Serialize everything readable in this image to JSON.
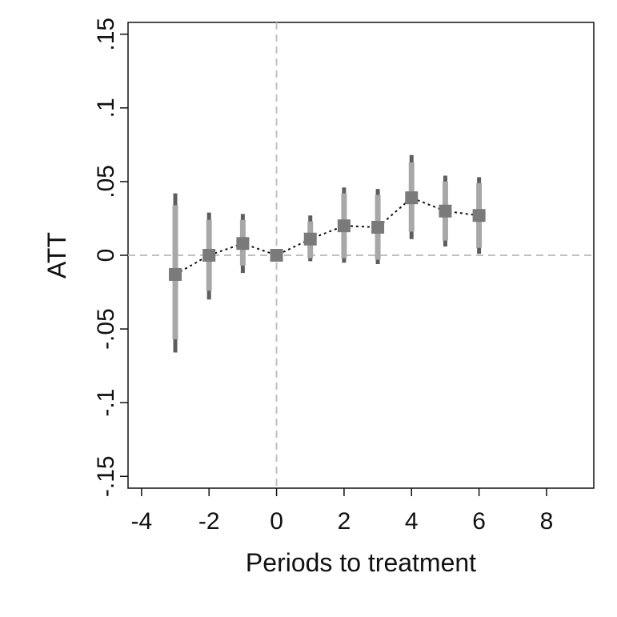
{
  "chart_data": {
    "type": "scatter",
    "title": "",
    "xlabel": "Periods to treatment",
    "ylabel": "ATT",
    "xlim": [
      -4.4,
      9.4
    ],
    "ylim": [
      -0.158,
      0.158
    ],
    "x_ticks": [
      {
        "value": -4,
        "label": "-4"
      },
      {
        "value": -2,
        "label": "-2"
      },
      {
        "value": 0,
        "label": "0"
      },
      {
        "value": 2,
        "label": "2"
      },
      {
        "value": 4,
        "label": "4"
      },
      {
        "value": 6,
        "label": "6"
      },
      {
        "value": 8,
        "label": "8"
      }
    ],
    "y_ticks": [
      {
        "value": -0.15,
        "label": "-.15"
      },
      {
        "value": -0.1,
        "label": "-.1"
      },
      {
        "value": -0.05,
        "label": "-.05"
      },
      {
        "value": 0,
        "label": "0"
      },
      {
        "value": 0.05,
        "label": ".05"
      },
      {
        "value": 0.1,
        "label": ".1"
      },
      {
        "value": 0.15,
        "label": ".15"
      }
    ],
    "grid": false,
    "reference_lines": {
      "x": 0,
      "y": 0
    },
    "series": [
      {
        "x": [
          -3,
          -2,
          -1,
          0,
          1,
          2,
          3,
          4,
          5,
          6
        ],
        "y": [
          -0.013,
          0.0,
          0.008,
          0.0,
          0.011,
          0.02,
          0.019,
          0.039,
          0.03,
          0.027
        ],
        "ci_inner_low": [
          -0.057,
          -0.024,
          -0.007,
          0.0,
          -0.002,
          -0.002,
          -0.003,
          0.016,
          0.01,
          0.005
        ],
        "ci_inner_high": [
          0.034,
          0.024,
          0.024,
          0.0,
          0.023,
          0.042,
          0.041,
          0.063,
          0.05,
          0.049
        ],
        "ci_outer_low": [
          -0.066,
          -0.03,
          -0.012,
          0.0,
          -0.004,
          -0.005,
          -0.006,
          0.011,
          0.006,
          0.001
        ],
        "ci_outer_high": [
          0.042,
          0.029,
          0.028,
          0.0,
          0.027,
          0.046,
          0.045,
          0.068,
          0.054,
          0.053
        ]
      }
    ],
    "colors": {
      "marker": "#7a7a7a",
      "ci_inner": "#a8a8a8",
      "ci_outer": "#5e5e5e",
      "line": "#111111",
      "refline": "#c0c0c0",
      "axis": "#111111"
    }
  }
}
